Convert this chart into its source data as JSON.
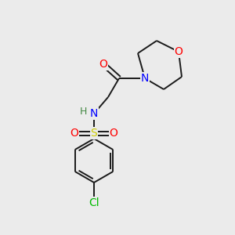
{
  "bg_color": "#ebebeb",
  "bond_color": "#1a1a1a",
  "atom_colors": {
    "O": "#ff0000",
    "N": "#0000ff",
    "S": "#cccc00",
    "Cl": "#00bb00",
    "H": "#448844",
    "C": "#1a1a1a"
  },
  "figsize": [
    3.0,
    3.0
  ],
  "dpi": 100
}
